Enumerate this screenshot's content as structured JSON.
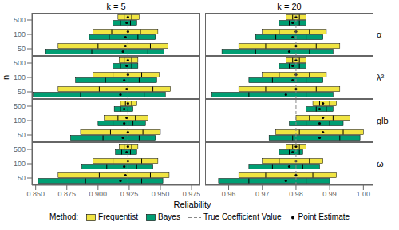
{
  "chart_data": [
    {
      "type": "bar",
      "orientation": "horizontal",
      "title": "k = 5",
      "tick_labels": "y",
      "categories": [
        "500",
        "100",
        "50"
      ],
      "xlim": [
        0.847,
        0.982
      ],
      "xticks": [
        {
          "value": 0.85,
          "label": "0.850"
        },
        0.875,
        {
          "value": 0.9,
          "label": "0.900"
        },
        0.925,
        {
          "value": 0.95,
          "label": "0.950"
        },
        0.975
      ],
      "series": [
        {
          "name": "Frequentist",
          "color": "#F0E442",
          "values": [
            {
              "lo": 0.916,
              "q25": 0.921,
              "q75": 0.927,
              "hi": 0.933,
              "point": 0.924
            },
            {
              "lo": 0.896,
              "q25": 0.911,
              "q75": 0.934,
              "hi": 0.948,
              "point": 0.924
            },
            {
              "lo": 0.868,
              "q25": 0.9,
              "q75": 0.942,
              "hi": 0.956,
              "point": 0.922
            }
          ]
        },
        {
          "name": "Bayes",
          "color": "#009E73",
          "values": [
            {
              "lo": 0.912,
              "q25": 0.918,
              "q75": 0.926,
              "hi": 0.931,
              "point": 0.923
            },
            {
              "lo": 0.893,
              "q25": 0.909,
              "q75": 0.932,
              "hi": 0.946,
              "point": 0.922
            },
            {
              "lo": 0.858,
              "q25": 0.895,
              "q75": 0.94,
              "hi": 0.953,
              "point": 0.92
            }
          ]
        }
      ],
      "reference_line": {
        "name": "True Coefficient Value",
        "value": 0.924,
        "color": "#888888",
        "line_style": "dashed"
      },
      "point_name": "Point Estimate"
    },
    {
      "type": "bar",
      "orientation": "horizontal",
      "title": "k = 20",
      "annotations": [
        "α"
      ],
      "tick_labels": false,
      "categories": [
        "500",
        "100",
        "50"
      ],
      "xlim": [
        0.953,
        1.003
      ],
      "xticks": [
        0.96,
        0.97,
        0.98,
        0.99,
        {
          "value": 1.0,
          "label": "1.00"
        }
      ],
      "series": [
        {
          "name": "Frequentist",
          "color": "#F0E442",
          "values": [
            {
              "lo": 0.977,
              "q25": 0.979,
              "q75": 0.981,
              "hi": 0.983,
              "point": 0.98
            },
            {
              "lo": 0.97,
              "q25": 0.975,
              "q75": 0.984,
              "hi": 0.989,
              "point": 0.98
            },
            {
              "lo": 0.963,
              "q25": 0.971,
              "q75": 0.986,
              "hi": 0.993,
              "point": 0.98
            }
          ]
        },
        {
          "name": "Bayes",
          "color": "#009E73",
          "values": [
            {
              "lo": 0.975,
              "q25": 0.978,
              "q75": 0.981,
              "hi": 0.983,
              "point": 0.979
            },
            {
              "lo": 0.968,
              "q25": 0.974,
              "q75": 0.983,
              "hi": 0.988,
              "point": 0.979
            },
            {
              "lo": 0.958,
              "q25": 0.968,
              "q75": 0.984,
              "hi": 0.991,
              "point": 0.978
            }
          ]
        }
      ],
      "reference_line": {
        "name": "True Coefficient Value",
        "value": 0.98,
        "color": "#888888",
        "line_style": "dashed"
      },
      "point_name": "Point Estimate"
    },
    {
      "type": "bar",
      "orientation": "horizontal",
      "ylabel": "n",
      "tick_labels": "y",
      "categories": [
        "500",
        "100",
        "50"
      ],
      "xlim": [
        0.847,
        0.982
      ],
      "xticks": [
        {
          "value": 0.85,
          "label": "0.850"
        },
        0.875,
        {
          "value": 0.9,
          "label": "0.900"
        },
        0.925,
        {
          "value": 0.95,
          "label": "0.950"
        },
        0.975
      ],
      "series": [
        {
          "name": "Frequentist",
          "color": "#F0E442",
          "values": [
            {
              "lo": 0.917,
              "q25": 0.921,
              "q75": 0.927,
              "hi": 0.932,
              "point": 0.924
            },
            {
              "lo": 0.896,
              "q25": 0.912,
              "q75": 0.935,
              "hi": 0.949,
              "point": 0.924
            },
            {
              "lo": 0.868,
              "q25": 0.901,
              "q75": 0.944,
              "hi": 0.958,
              "point": 0.923
            }
          ]
        },
        {
          "name": "Bayes",
          "color": "#009E73",
          "values": [
            {
              "lo": 0.912,
              "q25": 0.918,
              "q75": 0.927,
              "hi": 0.932,
              "point": 0.923
            },
            {
              "lo": 0.882,
              "q25": 0.906,
              "q75": 0.933,
              "hi": 0.947,
              "point": 0.921
            },
            {
              "lo": 0.848,
              "q25": 0.886,
              "q75": 0.937,
              "hi": 0.954,
              "point": 0.918
            }
          ]
        }
      ],
      "reference_line": {
        "name": "True Coefficient Value",
        "value": 0.924,
        "color": "#888888",
        "line_style": "dashed"
      },
      "point_name": "Point Estimate"
    },
    {
      "type": "bar",
      "orientation": "horizontal",
      "annotations": [
        "λ²"
      ],
      "tick_labels": false,
      "categories": [
        "500",
        "100",
        "50"
      ],
      "xlim": [
        0.953,
        1.003
      ],
      "xticks": [
        0.96,
        0.97,
        0.98,
        0.99,
        {
          "value": 1.0,
          "label": "1.00"
        }
      ],
      "series": [
        {
          "name": "Frequentist",
          "color": "#F0E442",
          "values": [
            {
              "lo": 0.977,
              "q25": 0.979,
              "q75": 0.981,
              "hi": 0.983,
              "point": 0.98
            },
            {
              "lo": 0.97,
              "q25": 0.975,
              "q75": 0.984,
              "hi": 0.989,
              "point": 0.98
            },
            {
              "lo": 0.963,
              "q25": 0.971,
              "q75": 0.986,
              "hi": 0.993,
              "point": 0.98
            }
          ]
        },
        {
          "name": "Bayes",
          "color": "#009E73",
          "values": [
            {
              "lo": 0.975,
              "q25": 0.978,
              "q75": 0.981,
              "hi": 0.983,
              "point": 0.979
            },
            {
              "lo": 0.966,
              "q25": 0.973,
              "q75": 0.983,
              "hi": 0.988,
              "point": 0.979
            },
            {
              "lo": 0.955,
              "q25": 0.966,
              "q75": 0.983,
              "hi": 0.991,
              "point": 0.977
            }
          ]
        }
      ],
      "reference_line": {
        "name": "True Coefficient Value",
        "value": 0.98,
        "color": "#888888",
        "line_style": "dashed"
      },
      "point_name": "Point Estimate"
    },
    {
      "type": "bar",
      "orientation": "horizontal",
      "tick_labels": "y",
      "categories": [
        "500",
        "100",
        "50"
      ],
      "xlim": [
        0.847,
        0.982
      ],
      "xticks": [
        {
          "value": 0.85,
          "label": "0.850"
        },
        0.875,
        {
          "value": 0.9,
          "label": "0.900"
        },
        0.925,
        {
          "value": 0.95,
          "label": "0.950"
        },
        0.975
      ],
      "series": [
        {
          "name": "Frequentist",
          "color": "#F0E442",
          "values": [
            {
              "lo": 0.918,
              "q25": 0.922,
              "q75": 0.927,
              "hi": 0.931,
              "point": 0.924
            },
            {
              "lo": 0.905,
              "q25": 0.916,
              "q75": 0.93,
              "hi": 0.94,
              "point": 0.923
            },
            {
              "lo": 0.886,
              "q25": 0.91,
              "q75": 0.936,
              "hi": 0.95,
              "point": 0.924
            }
          ]
        },
        {
          "name": "Bayes",
          "color": "#009E73",
          "values": [
            {
              "lo": 0.913,
              "q25": 0.918,
              "q75": 0.924,
              "hi": 0.928,
              "point": 0.921
            },
            {
              "lo": 0.9,
              "q25": 0.912,
              "q75": 0.928,
              "hi": 0.938,
              "point": 0.921
            },
            {
              "lo": 0.878,
              "q25": 0.904,
              "q75": 0.933,
              "hi": 0.946,
              "point": 0.92
            }
          ]
        }
      ],
      "reference_line": {
        "name": "True Coefficient Value",
        "value": 0.924,
        "color": "#888888",
        "line_style": "dashed"
      },
      "point_name": "Point Estimate"
    },
    {
      "type": "bar",
      "orientation": "horizontal",
      "annotations": [
        "glb"
      ],
      "tick_labels": false,
      "categories": [
        "500",
        "100",
        "50"
      ],
      "xlim": [
        0.953,
        1.003
      ],
      "xticks": [
        0.96,
        0.97,
        0.98,
        0.99,
        {
          "value": 1.0,
          "label": "1.00"
        }
      ],
      "series": [
        {
          "name": "Frequentist",
          "color": "#F0E442",
          "values": [
            {
              "lo": 0.985,
              "q25": 0.987,
              "q75": 0.99,
              "hi": 0.992,
              "point": 0.988
            },
            {
              "lo": 0.98,
              "q25": 0.984,
              "q75": 0.991,
              "hi": 0.996,
              "point": 0.988
            },
            {
              "lo": 0.974,
              "q25": 0.981,
              "q75": 0.994,
              "hi": 1.0,
              "point": 0.988
            }
          ]
        },
        {
          "name": "Bayes",
          "color": "#009E73",
          "values": [
            {
              "lo": 0.983,
              "q25": 0.986,
              "q75": 0.989,
              "hi": 0.991,
              "point": 0.987
            },
            {
              "lo": 0.978,
              "q25": 0.983,
              "q75": 0.99,
              "hi": 0.994,
              "point": 0.987
            },
            {
              "lo": 0.972,
              "q25": 0.979,
              "q75": 0.993,
              "hi": 0.999,
              "point": 0.987
            }
          ]
        }
      ],
      "reference_line": {
        "name": "True Coefficient Value",
        "value": 0.98,
        "color": "#888888",
        "line_style": "dashed"
      },
      "point_name": "Point Estimate"
    },
    {
      "type": "bar",
      "orientation": "horizontal",
      "xlabel": "Reliability",
      "legend": "bottom",
      "legend_title": "Method:",
      "tick_labels": true,
      "categories": [
        "500",
        "100",
        "50"
      ],
      "xlim": [
        0.847,
        0.982
      ],
      "xticks": [
        {
          "value": 0.85,
          "label": "0.850"
        },
        0.875,
        {
          "value": 0.9,
          "label": "0.900"
        },
        0.925,
        {
          "value": 0.95,
          "label": "0.950"
        },
        0.975
      ],
      "series": [
        {
          "name": "Frequentist",
          "color": "#F0E442",
          "values": [
            {
              "lo": 0.917,
              "q25": 0.921,
              "q75": 0.927,
              "hi": 0.932,
              "point": 0.924
            },
            {
              "lo": 0.896,
              "q25": 0.912,
              "q75": 0.935,
              "hi": 0.948,
              "point": 0.924
            },
            {
              "lo": 0.868,
              "q25": 0.901,
              "q75": 0.942,
              "hi": 0.957,
              "point": 0.922
            }
          ]
        },
        {
          "name": "Bayes",
          "color": "#009E73",
          "values": [
            {
              "lo": 0.914,
              "q25": 0.919,
              "q75": 0.926,
              "hi": 0.931,
              "point": 0.923
            },
            {
              "lo": 0.887,
              "q25": 0.907,
              "q75": 0.931,
              "hi": 0.944,
              "point": 0.921
            },
            {
              "lo": 0.852,
              "q25": 0.89,
              "q75": 0.935,
              "hi": 0.952,
              "point": 0.918
            }
          ]
        }
      ],
      "reference_line": {
        "name": "True Coefficient Value",
        "value": 0.924,
        "color": "#888888",
        "line_style": "dashed"
      },
      "point_name": "Point Estimate"
    },
    {
      "type": "bar",
      "orientation": "horizontal",
      "annotations": [
        "ω"
      ],
      "tick_labels": "x",
      "categories": [
        "500",
        "100",
        "50"
      ],
      "xlim": [
        0.953,
        1.003
      ],
      "xticks": [
        0.96,
        0.97,
        0.98,
        0.99,
        {
          "value": 1.0,
          "label": "1.00"
        }
      ],
      "series": [
        {
          "name": "Frequentist",
          "color": "#F0E442",
          "values": [
            {
              "lo": 0.977,
              "q25": 0.979,
              "q75": 0.981,
              "hi": 0.983,
              "point": 0.98
            },
            {
              "lo": 0.97,
              "q25": 0.975,
              "q75": 0.984,
              "hi": 0.988,
              "point": 0.98
            },
            {
              "lo": 0.963,
              "q25": 0.971,
              "q75": 0.985,
              "hi": 0.992,
              "point": 0.98
            }
          ]
        },
        {
          "name": "Bayes",
          "color": "#009E73",
          "values": [
            {
              "lo": 0.975,
              "q25": 0.978,
              "q75": 0.981,
              "hi": 0.982,
              "point": 0.979
            },
            {
              "lo": 0.966,
              "q25": 0.973,
              "q75": 0.982,
              "hi": 0.987,
              "point": 0.978
            },
            {
              "lo": 0.957,
              "q25": 0.966,
              "q75": 0.983,
              "hi": 0.99,
              "point": 0.977
            }
          ]
        }
      ],
      "reference_line": {
        "name": "True Coefficient Value",
        "value": 0.98,
        "color": "#888888",
        "line_style": "dashed"
      },
      "point_name": "Point Estimate"
    }
  ]
}
